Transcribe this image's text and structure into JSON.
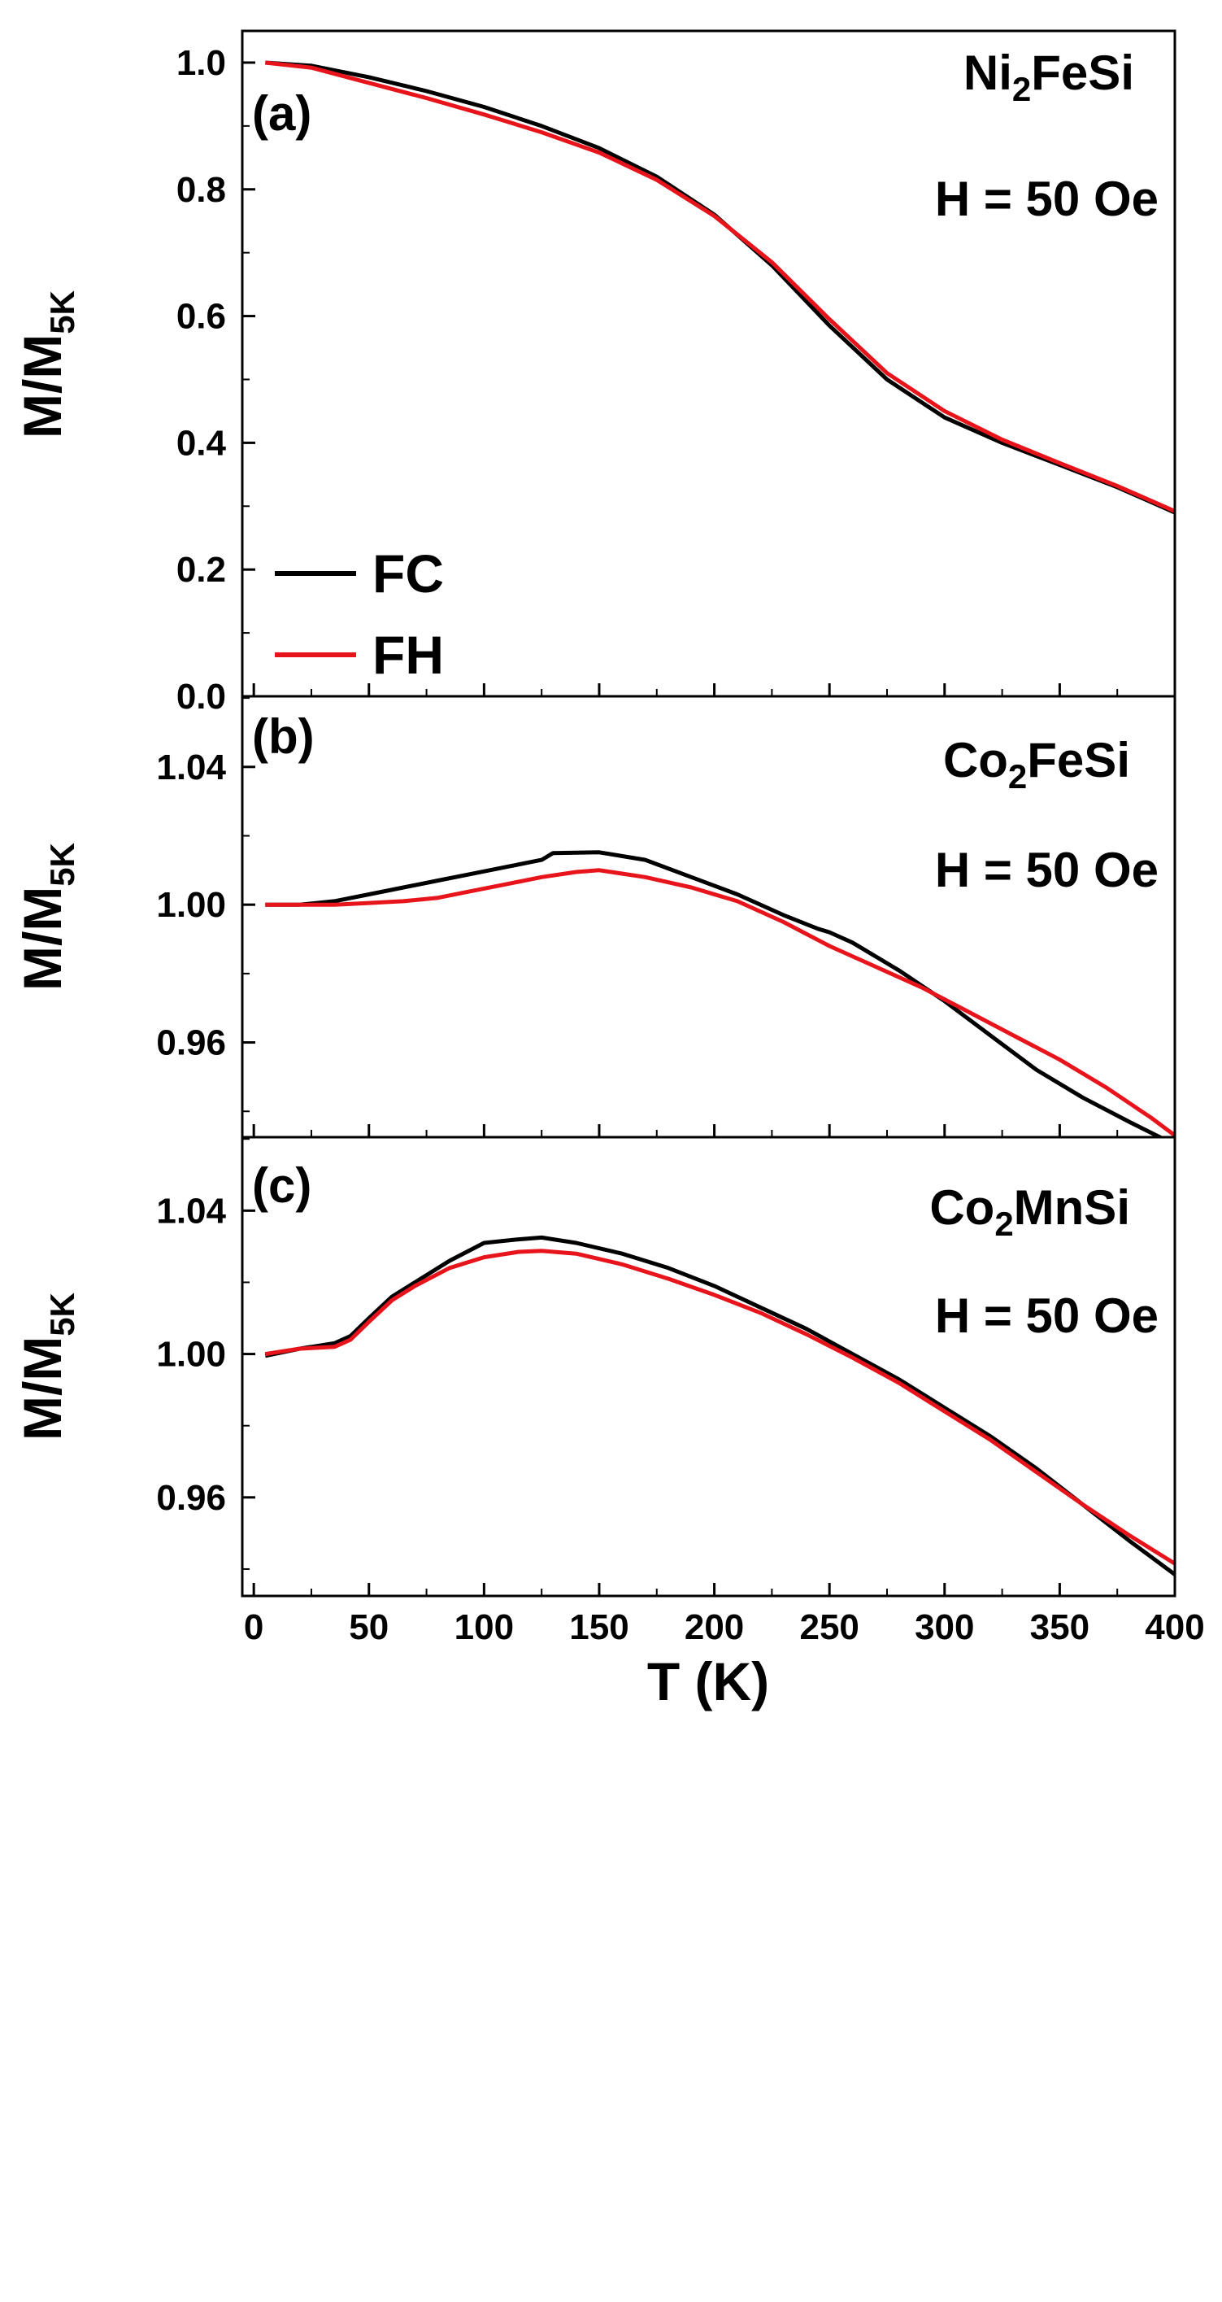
{
  "figure": {
    "xlabel": "T (K)",
    "x_ticks": [
      "0",
      "50",
      "100",
      "150",
      "200",
      "250",
      "300",
      "350",
      "400"
    ],
    "colors": {
      "FC": "#000000",
      "FH": "#e8141b"
    },
    "legend": {
      "fc": "FC",
      "fh": "FH"
    }
  },
  "chart_data": [
    {
      "type": "line",
      "panel_label": "(a)",
      "compound": {
        "main": "Ni",
        "sub": "2",
        "rest": "FeSi"
      },
      "field_label": "H = 50 Oe",
      "ylabel": {
        "main": "M/M",
        "sub": "5K"
      },
      "xlim": [
        -5,
        400
      ],
      "ylim": [
        0,
        1.05
      ],
      "y_ticks": [
        "0.0",
        "0.2",
        "0.4",
        "0.6",
        "0.8",
        "1.0"
      ],
      "y_tick_values": [
        0.0,
        0.2,
        0.4,
        0.6,
        0.8,
        1.0
      ],
      "legend_position": "bottom-left",
      "series": [
        {
          "name": "FC",
          "x": [
            5,
            25,
            50,
            75,
            100,
            125,
            150,
            175,
            200,
            225,
            250,
            275,
            300,
            325,
            350,
            375,
            400
          ],
          "y": [
            1.0,
            0.995,
            0.977,
            0.955,
            0.93,
            0.9,
            0.865,
            0.82,
            0.76,
            0.68,
            0.585,
            0.5,
            0.44,
            0.4,
            0.365,
            0.33,
            0.29
          ]
        },
        {
          "name": "FH",
          "x": [
            5,
            25,
            50,
            75,
            100,
            125,
            150,
            175,
            200,
            225,
            250,
            275,
            300,
            325,
            350,
            375,
            400
          ],
          "y": [
            1.0,
            0.992,
            0.968,
            0.944,
            0.918,
            0.89,
            0.858,
            0.815,
            0.758,
            0.685,
            0.595,
            0.51,
            0.45,
            0.405,
            0.368,
            0.332,
            0.292
          ]
        }
      ]
    },
    {
      "type": "line",
      "panel_label": "(b)",
      "compound": {
        "main": "Co",
        "sub": "2",
        "rest": "FeSi"
      },
      "field_label": "H = 50 Oe",
      "ylabel": {
        "main": "M/M",
        "sub": "5K"
      },
      "xlim": [
        -5,
        400
      ],
      "ylim": [
        0.9325,
        1.0605
      ],
      "y_ticks": [
        "0.96",
        "1.00",
        "1.04"
      ],
      "y_tick_values": [
        0.96,
        1.0,
        1.04
      ],
      "series": [
        {
          "name": "FC",
          "x": [
            5,
            20,
            35,
            50,
            65,
            80,
            95,
            110,
            125,
            130,
            150,
            170,
            190,
            210,
            230,
            245,
            250,
            260,
            280,
            300,
            320,
            340,
            360,
            380,
            395
          ],
          "y": [
            1.0,
            1.0,
            1.001,
            1.003,
            1.005,
            1.007,
            1.009,
            1.011,
            1.013,
            1.015,
            1.0152,
            1.013,
            1.008,
            1.003,
            0.997,
            0.993,
            0.992,
            0.989,
            0.981,
            0.972,
            0.962,
            0.952,
            0.944,
            0.937,
            0.932
          ]
        },
        {
          "name": "FH",
          "x": [
            5,
            20,
            35,
            50,
            65,
            80,
            95,
            110,
            125,
            140,
            150,
            170,
            190,
            210,
            230,
            250,
            270,
            290,
            310,
            330,
            350,
            370,
            390,
            400
          ],
          "y": [
            1.0,
            1.0,
            1.0,
            1.0005,
            1.001,
            1.002,
            1.004,
            1.006,
            1.008,
            1.0095,
            1.01,
            1.008,
            1.005,
            1.001,
            0.995,
            0.988,
            0.982,
            0.976,
            0.969,
            0.962,
            0.955,
            0.947,
            0.938,
            0.933
          ]
        }
      ]
    },
    {
      "type": "line",
      "panel_label": "(c)",
      "compound": {
        "main": "Co",
        "sub": "2",
        "rest": "MnSi"
      },
      "field_label": "H = 50 Oe",
      "ylabel": {
        "main": "M/M",
        "sub": "5K"
      },
      "xlim": [
        -5,
        400
      ],
      "ylim": [
        0.9325,
        1.0605
      ],
      "y_ticks": [
        "0.96",
        "1.00",
        "1.04"
      ],
      "y_tick_values": [
        0.96,
        1.0,
        1.04
      ],
      "series": [
        {
          "name": "FC",
          "x": [
            5,
            20,
            35,
            42,
            50,
            60,
            70,
            85,
            100,
            115,
            125,
            140,
            160,
            180,
            200,
            220,
            240,
            260,
            280,
            300,
            320,
            340,
            360,
            380,
            400
          ],
          "y": [
            0.9995,
            1.0015,
            1.003,
            1.005,
            1.01,
            1.016,
            1.02,
            1.026,
            1.031,
            1.032,
            1.0325,
            1.031,
            1.028,
            1.024,
            1.019,
            1.013,
            1.007,
            1.0,
            0.993,
            0.985,
            0.977,
            0.968,
            0.958,
            0.948,
            0.9385
          ]
        },
        {
          "name": "FH",
          "x": [
            5,
            20,
            35,
            42,
            50,
            60,
            70,
            85,
            100,
            115,
            125,
            140,
            160,
            180,
            200,
            220,
            240,
            260,
            280,
            300,
            320,
            340,
            360,
            380,
            400
          ],
          "y": [
            1.0,
            1.0015,
            1.002,
            1.004,
            1.009,
            1.015,
            1.019,
            1.024,
            1.027,
            1.0285,
            1.0288,
            1.028,
            1.025,
            1.021,
            1.0165,
            1.0115,
            1.0055,
            0.999,
            0.992,
            0.984,
            0.976,
            0.967,
            0.958,
            0.9495,
            0.9415
          ]
        }
      ]
    }
  ]
}
